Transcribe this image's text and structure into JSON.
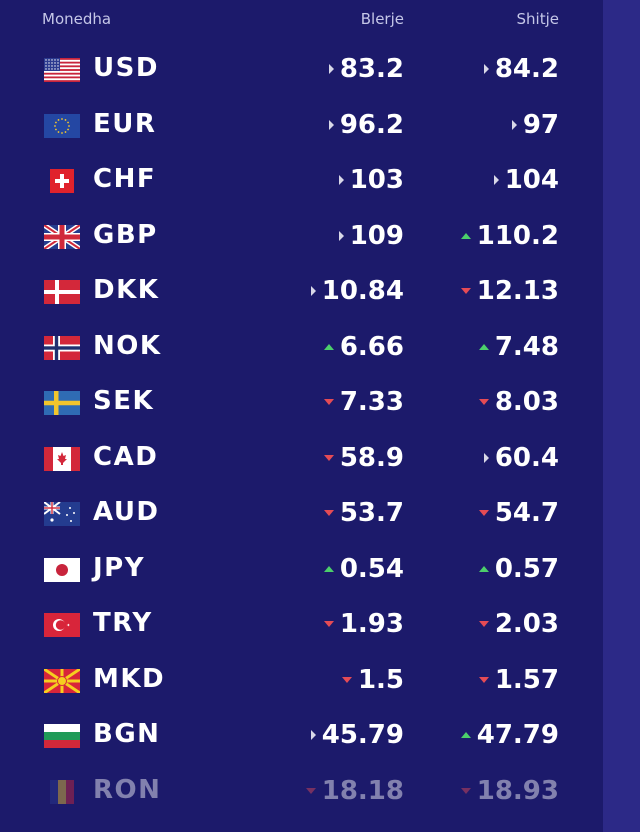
{
  "header": {
    "currency": "Monedha",
    "buy": "Blerje",
    "sell": "Shitje"
  },
  "rows": [
    {
      "code": "USD",
      "flag": "us-flag-icon",
      "buy": "83.2",
      "buy_trend": "flat",
      "sell": "84.2",
      "sell_trend": "flat"
    },
    {
      "code": "EUR",
      "flag": "eu-flag-icon",
      "buy": "96.2",
      "buy_trend": "flat",
      "sell": "97",
      "sell_trend": "flat"
    },
    {
      "code": "CHF",
      "flag": "ch-flag-icon",
      "buy": "103",
      "buy_trend": "flat",
      "sell": "104",
      "sell_trend": "flat"
    },
    {
      "code": "GBP",
      "flag": "gb-flag-icon",
      "buy": "109",
      "buy_trend": "flat",
      "sell": "110.2",
      "sell_trend": "up"
    },
    {
      "code": "DKK",
      "flag": "dk-flag-icon",
      "buy": "10.84",
      "buy_trend": "flat",
      "sell": "12.13",
      "sell_trend": "down"
    },
    {
      "code": "NOK",
      "flag": "no-flag-icon",
      "buy": "6.66",
      "buy_trend": "up",
      "sell": "7.48",
      "sell_trend": "up"
    },
    {
      "code": "SEK",
      "flag": "se-flag-icon",
      "buy": "7.33",
      "buy_trend": "down",
      "sell": "8.03",
      "sell_trend": "down"
    },
    {
      "code": "CAD",
      "flag": "ca-flag-icon",
      "buy": "58.9",
      "buy_trend": "down",
      "sell": "60.4",
      "sell_trend": "flat"
    },
    {
      "code": "AUD",
      "flag": "au-flag-icon",
      "buy": "53.7",
      "buy_trend": "down",
      "sell": "54.7",
      "sell_trend": "down"
    },
    {
      "code": "JPY",
      "flag": "jp-flag-icon",
      "buy": "0.54",
      "buy_trend": "up",
      "sell": "0.57",
      "sell_trend": "up"
    },
    {
      "code": "TRY",
      "flag": "tr-flag-icon",
      "buy": "1.93",
      "buy_trend": "down",
      "sell": "2.03",
      "sell_trend": "down"
    },
    {
      "code": "MKD",
      "flag": "mk-flag-icon",
      "buy": "1.5",
      "buy_trend": "down",
      "sell": "1.57",
      "sell_trend": "down"
    },
    {
      "code": "BGN",
      "flag": "bg-flag-icon",
      "buy": "45.79",
      "buy_trend": "flat",
      "sell": "47.79",
      "sell_trend": "up"
    },
    {
      "code": "RON",
      "flag": "ro-flag-icon",
      "buy": "18.18",
      "buy_trend": "down",
      "sell": "18.93",
      "sell_trend": "down"
    }
  ],
  "colors": {
    "background": "#1c1a6b",
    "up": "#4ccf6b",
    "down": "#e54b55",
    "flat": "#d8d8e8"
  }
}
